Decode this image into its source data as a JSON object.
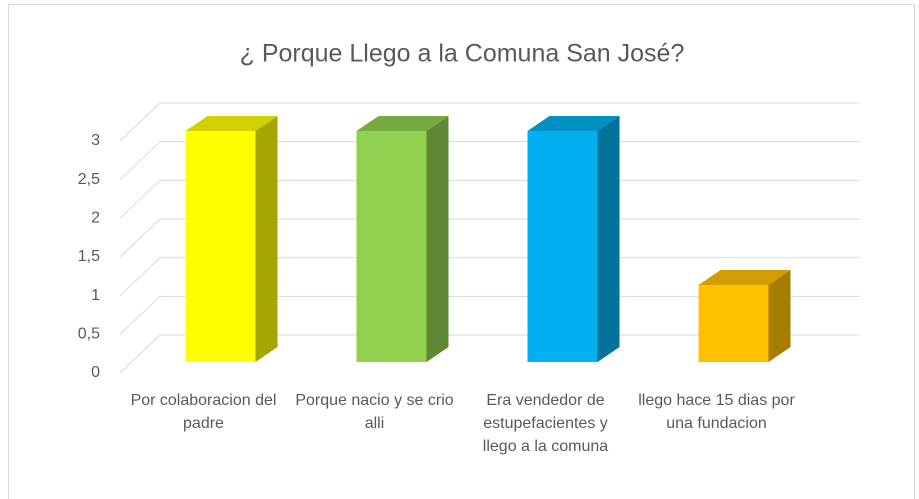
{
  "chart_data": {
    "type": "bar3d",
    "title": "¿ Porque Llego a la Comuna San José?",
    "categories": [
      "Por colaboracion del padre",
      "Porque nacio y se crio alli",
      "Era vendedor de estupefacientes y llego a la comuna",
      "llego hace 15 dias por una fundacion"
    ],
    "values": [
      3,
      3,
      3,
      1
    ],
    "colors": [
      "#ffff00",
      "#92d050",
      "#00b0f0",
      "#ffc000"
    ],
    "ylim": [
      0,
      3
    ],
    "yticks": [
      0,
      {
        "value": 0.5,
        "label": "0,5"
      },
      1,
      {
        "value": 1.5,
        "label": "1,5"
      },
      2,
      {
        "value": 2.5,
        "label": "2,5"
      },
      3
    ],
    "grid": true
  }
}
